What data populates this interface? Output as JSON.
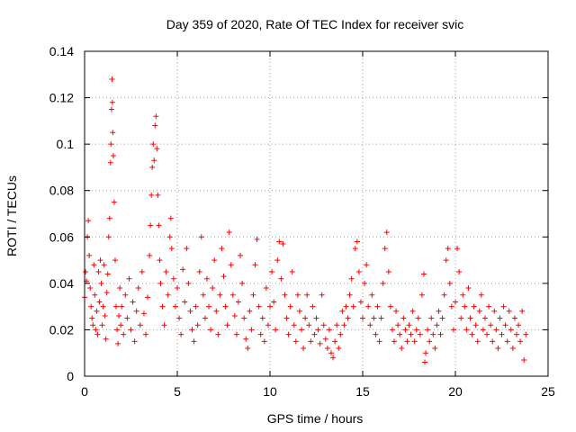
{
  "chart_data": {
    "type": "scatter",
    "title": "Day 359 of 2020, Rate Of TEC Index for receiver svic",
    "xlabel": "GPS time / hours",
    "ylabel": "ROTI / TECUs",
    "xlim": [
      0,
      25
    ],
    "ylim": [
      0,
      0.14
    ],
    "x_ticks": [
      0,
      5,
      10,
      15,
      20,
      25
    ],
    "y_ticks": [
      0,
      0.02,
      0.04,
      0.06,
      0.08,
      0.1,
      0.12,
      0.14
    ],
    "x_tick_labels": [
      "0",
      "5",
      "10",
      "15",
      "20",
      "25"
    ],
    "y_tick_labels": [
      "0",
      "0.02",
      "0.04",
      "0.06",
      "0.08",
      "0.1",
      "0.12",
      "0.14"
    ],
    "grid": true,
    "marker": "plus",
    "color": "#ff0000",
    "series": [
      {
        "name": "ROTI",
        "points": [
          [
            0.0,
            0.034
          ],
          [
            0.05,
            0.045
          ],
          [
            0.1,
            0.041
          ],
          [
            0.15,
            0.06
          ],
          [
            0.2,
            0.067
          ],
          [
            0.25,
            0.052
          ],
          [
            0.3,
            0.038
          ],
          [
            0.35,
            0.03
          ],
          [
            0.4,
            0.025
          ],
          [
            0.45,
            0.022
          ],
          [
            0.5,
            0.048
          ],
          [
            0.55,
            0.035
          ],
          [
            0.6,
            0.02
          ],
          [
            0.65,
            0.028
          ],
          [
            0.7,
            0.018
          ],
          [
            0.75,
            0.045
          ],
          [
            0.8,
            0.032
          ],
          [
            0.85,
            0.05
          ],
          [
            0.9,
            0.04
          ],
          [
            0.95,
            0.022
          ],
          [
            1.0,
            0.03
          ],
          [
            1.05,
            0.048
          ],
          [
            1.1,
            0.026
          ],
          [
            1.15,
            0.016
          ],
          [
            1.2,
            0.036
          ],
          [
            1.25,
            0.044
          ],
          [
            1.3,
            0.06
          ],
          [
            1.35,
            0.068
          ],
          [
            1.4,
            0.092
          ],
          [
            1.42,
            0.1
          ],
          [
            1.45,
            0.115
          ],
          [
            1.48,
            0.128
          ],
          [
            1.5,
            0.118
          ],
          [
            1.52,
            0.105
          ],
          [
            1.55,
            0.095
          ],
          [
            1.6,
            0.075
          ],
          [
            1.65,
            0.05
          ],
          [
            1.7,
            0.03
          ],
          [
            1.75,
            0.02
          ],
          [
            1.8,
            0.014
          ],
          [
            1.85,
            0.026
          ],
          [
            1.9,
            0.038
          ],
          [
            1.95,
            0.022
          ],
          [
            2.0,
            0.03
          ],
          [
            2.1,
            0.018
          ],
          [
            2.2,
            0.035
          ],
          [
            2.3,
            0.025
          ],
          [
            2.4,
            0.042
          ],
          [
            2.5,
            0.02
          ],
          [
            2.6,
            0.032
          ],
          [
            2.7,
            0.015
          ],
          [
            2.8,
            0.028
          ],
          [
            2.9,
            0.038
          ],
          [
            3.0,
            0.022
          ],
          [
            3.1,
            0.045
          ],
          [
            3.2,
            0.027
          ],
          [
            3.3,
            0.018
          ],
          [
            3.4,
            0.034
          ],
          [
            3.5,
            0.052
          ],
          [
            3.55,
            0.065
          ],
          [
            3.6,
            0.078
          ],
          [
            3.65,
            0.09
          ],
          [
            3.7,
            0.1
          ],
          [
            3.75,
            0.093
          ],
          [
            3.8,
            0.108
          ],
          [
            3.85,
            0.112
          ],
          [
            3.9,
            0.098
          ],
          [
            3.95,
            0.078
          ],
          [
            4.0,
            0.065
          ],
          [
            4.05,
            0.05
          ],
          [
            4.1,
            0.04
          ],
          [
            4.2,
            0.03
          ],
          [
            4.3,
            0.022
          ],
          [
            4.4,
            0.045
          ],
          [
            4.5,
            0.035
          ],
          [
            4.6,
            0.06
          ],
          [
            4.65,
            0.068
          ],
          [
            4.7,
            0.055
          ],
          [
            4.8,
            0.042
          ],
          [
            4.9,
            0.03
          ],
          [
            5.0,
            0.038
          ],
          [
            5.1,
            0.025
          ],
          [
            5.2,
            0.018
          ],
          [
            5.3,
            0.046
          ],
          [
            5.4,
            0.032
          ],
          [
            5.5,
            0.055
          ],
          [
            5.6,
            0.04
          ],
          [
            5.7,
            0.028
          ],
          [
            5.8,
            0.02
          ],
          [
            5.9,
            0.015
          ],
          [
            6.0,
            0.03
          ],
          [
            6.1,
            0.022
          ],
          [
            6.2,
            0.045
          ],
          [
            6.3,
            0.06
          ],
          [
            6.4,
            0.035
          ],
          [
            6.5,
            0.025
          ],
          [
            6.6,
            0.042
          ],
          [
            6.7,
            0.03
          ],
          [
            6.8,
            0.02
          ],
          [
            6.9,
            0.038
          ],
          [
            7.0,
            0.05
          ],
          [
            7.1,
            0.028
          ],
          [
            7.2,
            0.018
          ],
          [
            7.3,
            0.035
          ],
          [
            7.4,
            0.055
          ],
          [
            7.5,
            0.043
          ],
          [
            7.6,
            0.03
          ],
          [
            7.7,
            0.022
          ],
          [
            7.8,
            0.062
          ],
          [
            7.9,
            0.048
          ],
          [
            8.0,
            0.035
          ],
          [
            8.1,
            0.026
          ],
          [
            8.2,
            0.018
          ],
          [
            8.3,
            0.032
          ],
          [
            8.4,
            0.052
          ],
          [
            8.5,
            0.04
          ],
          [
            8.6,
            0.025
          ],
          [
            8.7,
            0.016
          ],
          [
            8.8,
            0.012
          ],
          [
            8.9,
            0.028
          ],
          [
            9.0,
            0.02
          ],
          [
            9.1,
            0.035
          ],
          [
            9.2,
            0.048
          ],
          [
            9.3,
            0.059
          ],
          [
            9.4,
            0.03
          ],
          [
            9.5,
            0.018
          ],
          [
            9.6,
            0.025
          ],
          [
            9.7,
            0.015
          ],
          [
            9.8,
            0.038
          ],
          [
            9.9,
            0.022
          ],
          [
            10.0,
            0.03
          ],
          [
            10.1,
            0.045
          ],
          [
            10.2,
            0.032
          ],
          [
            10.3,
            0.02
          ],
          [
            10.4,
            0.05
          ],
          [
            10.5,
            0.058
          ],
          [
            10.6,
            0.042
          ],
          [
            10.7,
            0.057
          ],
          [
            10.8,
            0.035
          ],
          [
            10.9,
            0.025
          ],
          [
            11.0,
            0.018
          ],
          [
            11.1,
            0.03
          ],
          [
            11.2,
            0.045
          ],
          [
            11.3,
            0.022
          ],
          [
            11.4,
            0.015
          ],
          [
            11.5,
            0.035
          ],
          [
            11.6,
            0.028
          ],
          [
            11.7,
            0.02
          ],
          [
            11.8,
            0.012
          ],
          [
            11.9,
            0.025
          ],
          [
            12.0,
            0.035
          ],
          [
            12.1,
            0.022
          ],
          [
            12.2,
            0.015
          ],
          [
            12.3,
            0.03
          ],
          [
            12.4,
            0.018
          ],
          [
            12.5,
            0.025
          ],
          [
            12.6,
            0.02
          ],
          [
            12.7,
            0.014
          ],
          [
            12.8,
            0.035
          ],
          [
            12.9,
            0.022
          ],
          [
            13.0,
            0.016
          ],
          [
            13.1,
            0.012
          ],
          [
            13.2,
            0.02
          ],
          [
            13.3,
            0.01
          ],
          [
            13.4,
            0.008
          ],
          [
            13.5,
            0.015
          ],
          [
            13.6,
            0.022
          ],
          [
            13.7,
            0.012
          ],
          [
            13.8,
            0.018
          ],
          [
            13.9,
            0.028
          ],
          [
            14.0,
            0.022
          ],
          [
            14.1,
            0.03
          ],
          [
            14.2,
            0.025
          ],
          [
            14.3,
            0.035
          ],
          [
            14.4,
            0.042
          ],
          [
            14.5,
            0.03
          ],
          [
            14.6,
            0.055
          ],
          [
            14.7,
            0.058
          ],
          [
            14.8,
            0.045
          ],
          [
            14.9,
            0.032
          ],
          [
            15.0,
            0.025
          ],
          [
            15.1,
            0.04
          ],
          [
            15.2,
            0.048
          ],
          [
            15.3,
            0.03
          ],
          [
            15.4,
            0.022
          ],
          [
            15.5,
            0.035
          ],
          [
            15.6,
            0.025
          ],
          [
            15.7,
            0.018
          ],
          [
            15.8,
            0.03
          ],
          [
            15.9,
            0.015
          ],
          [
            16.0,
            0.025
          ],
          [
            16.1,
            0.04
          ],
          [
            16.2,
            0.055
          ],
          [
            16.3,
            0.062
          ],
          [
            16.4,
            0.045
          ],
          [
            16.5,
            0.03
          ],
          [
            16.6,
            0.02
          ],
          [
            16.7,
            0.015
          ],
          [
            16.8,
            0.028
          ],
          [
            16.9,
            0.022
          ],
          [
            17.0,
            0.018
          ],
          [
            17.1,
            0.012
          ],
          [
            17.2,
            0.025
          ],
          [
            17.3,
            0.02
          ],
          [
            17.4,
            0.015
          ],
          [
            17.5,
            0.022
          ],
          [
            17.6,
            0.018
          ],
          [
            17.7,
            0.028
          ],
          [
            17.8,
            0.015
          ],
          [
            17.9,
            0.02
          ],
          [
            18.0,
            0.025
          ],
          [
            18.1,
            0.018
          ],
          [
            18.2,
            0.035
          ],
          [
            18.3,
            0.044
          ],
          [
            18.35,
            0.006
          ],
          [
            18.4,
            0.01
          ],
          [
            18.5,
            0.02
          ],
          [
            18.6,
            0.015
          ],
          [
            18.7,
            0.025
          ],
          [
            18.8,
            0.018
          ],
          [
            18.9,
            0.012
          ],
          [
            19.0,
            0.022
          ],
          [
            19.1,
            0.028
          ],
          [
            19.2,
            0.018
          ],
          [
            19.3,
            0.025
          ],
          [
            19.4,
            0.035
          ],
          [
            19.5,
            0.05
          ],
          [
            19.6,
            0.055
          ],
          [
            19.7,
            0.04
          ],
          [
            19.8,
            0.03
          ],
          [
            19.9,
            0.02
          ],
          [
            20.0,
            0.032
          ],
          [
            20.1,
            0.055
          ],
          [
            20.2,
            0.045
          ],
          [
            20.3,
            0.025
          ],
          [
            20.4,
            0.035
          ],
          [
            20.5,
            0.03
          ],
          [
            20.6,
            0.02
          ],
          [
            20.7,
            0.038
          ],
          [
            20.8,
            0.025
          ],
          [
            20.9,
            0.018
          ],
          [
            21.0,
            0.03
          ],
          [
            21.1,
            0.022
          ],
          [
            21.2,
            0.015
          ],
          [
            21.3,
            0.028
          ],
          [
            21.4,
            0.035
          ],
          [
            21.5,
            0.02
          ],
          [
            21.6,
            0.025
          ],
          [
            21.7,
            0.018
          ],
          [
            21.8,
            0.03
          ],
          [
            21.9,
            0.022
          ],
          [
            22.0,
            0.015
          ],
          [
            22.1,
            0.028
          ],
          [
            22.2,
            0.02
          ],
          [
            22.3,
            0.012
          ],
          [
            22.4,
            0.025
          ],
          [
            22.5,
            0.018
          ],
          [
            22.6,
            0.03
          ],
          [
            22.7,
            0.022
          ],
          [
            22.8,
            0.015
          ],
          [
            22.9,
            0.028
          ],
          [
            23.0,
            0.02
          ],
          [
            23.1,
            0.012
          ],
          [
            23.2,
            0.025
          ],
          [
            23.3,
            0.018
          ],
          [
            23.4,
            0.022
          ],
          [
            23.5,
            0.015
          ],
          [
            23.6,
            0.028
          ],
          [
            23.7,
            0.007
          ],
          [
            23.8,
            0.018
          ]
        ]
      }
    ]
  }
}
